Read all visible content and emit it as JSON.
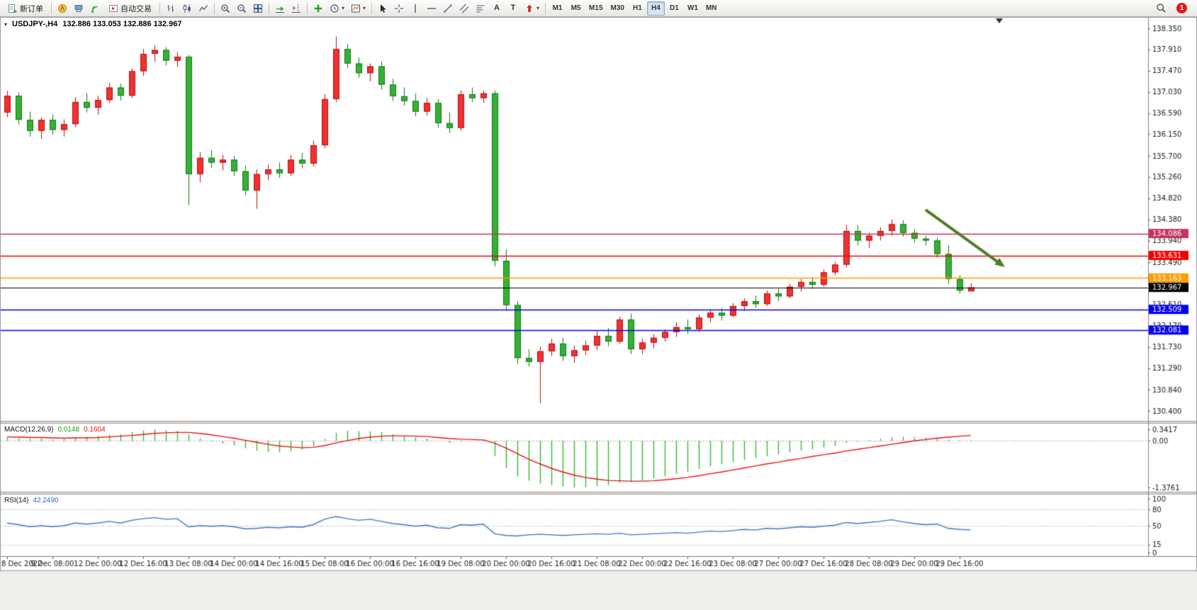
{
  "toolbar": {
    "new_order_label": "新订单",
    "auto_trading_label": "自动交易",
    "timeframes": [
      "M1",
      "M5",
      "M15",
      "M30",
      "H1",
      "H4",
      "D1",
      "W1",
      "MN"
    ],
    "active_timeframe": "H4",
    "notification_count": "1"
  },
  "chart": {
    "symbol_period": "USDJPY-,H4",
    "ohlc_line": "132.886 133.053 132.886 132.967",
    "macd_title": "MACD(12,26,9)",
    "macd_value_main": "0.0148",
    "macd_value_signal": "0.1604",
    "rsi_title": "RSI(14)",
    "rsi_value": "42.2490"
  },
  "chart_data": {
    "type": "candlestick",
    "symbol": "USDJPY-",
    "period": "H4",
    "ohlc_current": {
      "open": 132.886,
      "high": 133.053,
      "low": 132.886,
      "close": 132.967
    },
    "price_axis_labels": [
      "138.350",
      "137.910",
      "137.470",
      "137.030",
      "136.590",
      "136.150",
      "135.700",
      "135.260",
      "134.820",
      "134.380",
      "133.940",
      "133.490",
      "133.050",
      "132.610",
      "132.170",
      "131.730",
      "131.290",
      "130.840",
      "130.400"
    ],
    "time_axis_labels": [
      "8 Dec 2022",
      "9 Dec 08:00",
      "12 Dec 00:00",
      "12 Dec 16:00",
      "13 Dec 08:00",
      "14 Dec 00:00",
      "14 Dec 16:00",
      "15 Dec 08:00",
      "16 Dec 00:00",
      "16 Dec 16:00",
      "19 Dec 08:00",
      "20 Dec 00:00",
      "20 Dec 16:00",
      "21 Dec 08:00",
      "22 Dec 00:00",
      "22 Dec 16:00",
      "23 Dec 08:00",
      "27 Dec 00:00",
      "27 Dec 16:00",
      "28 Dec 08:00",
      "29 Dec 00:00",
      "29 Dec 16:00"
    ],
    "hlines": [
      {
        "price": 134.086,
        "label": "134.086",
        "color": "#c53259",
        "width": 1.4
      },
      {
        "price": 133.631,
        "label": "133.631",
        "color": "#f20000",
        "width": 1.4
      },
      {
        "price": 133.163,
        "label": "133.163",
        "color": "#ff9c00",
        "width": 1.6
      },
      {
        "price": 132.967,
        "label": "132.967",
        "color": "#000000",
        "width": 1.2
      },
      {
        "price": 132.509,
        "label": "132.509",
        "color": "#0000f0",
        "width": 1.6
      },
      {
        "price": 132.081,
        "label": "132.081",
        "color": "#0000f0",
        "width": 1.6
      }
    ],
    "arrow": {
      "from_index": 81,
      "from_price": 134.58,
      "to_index": 88,
      "to_price": 133.39,
      "color": "#4e7e24"
    },
    "colors": {
      "bull_fill": "#f03131",
      "bull_edge": "#b31212",
      "bear_fill": "#35b135",
      "bear_edge": "#157815",
      "macd_histogram": "#33bb33",
      "macd_signal": "#ee1111",
      "rsi_line": "#3f76c8",
      "axis_text": "#1a1a1a"
    },
    "candles_ohlc": [
      [
        136.6,
        137.05,
        136.5,
        136.95
      ],
      [
        136.95,
        137.02,
        136.35,
        136.45
      ],
      [
        136.45,
        136.62,
        136.1,
        136.22
      ],
      [
        136.22,
        136.5,
        136.05,
        136.45
      ],
      [
        136.45,
        136.56,
        136.14,
        136.24
      ],
      [
        136.24,
        136.46,
        136.1,
        136.36
      ],
      [
        136.36,
        136.92,
        136.3,
        136.82
      ],
      [
        136.82,
        137.0,
        136.6,
        136.7
      ],
      [
        136.7,
        136.95,
        136.55,
        136.86
      ],
      [
        136.86,
        137.22,
        136.8,
        137.12
      ],
      [
        137.12,
        137.2,
        136.85,
        136.95
      ],
      [
        136.95,
        137.52,
        136.9,
        137.46
      ],
      [
        137.46,
        137.92,
        137.36,
        137.82
      ],
      [
        137.82,
        138.0,
        137.65,
        137.9
      ],
      [
        137.9,
        137.96,
        137.58,
        137.68
      ],
      [
        137.68,
        137.86,
        137.55,
        137.76
      ],
      [
        137.76,
        137.8,
        134.68,
        135.32
      ],
      [
        135.32,
        135.78,
        135.15,
        135.66
      ],
      [
        135.66,
        135.82,
        135.45,
        135.56
      ],
      [
        135.56,
        135.72,
        135.4,
        135.62
      ],
      [
        135.62,
        135.7,
        135.28,
        135.38
      ],
      [
        135.38,
        135.5,
        134.88,
        134.98
      ],
      [
        134.98,
        135.42,
        134.6,
        135.32
      ],
      [
        135.32,
        135.52,
        135.2,
        135.42
      ],
      [
        135.42,
        135.56,
        135.24,
        135.34
      ],
      [
        135.34,
        135.72,
        135.28,
        135.62
      ],
      [
        135.62,
        135.76,
        135.44,
        135.54
      ],
      [
        135.54,
        136.02,
        135.48,
        135.92
      ],
      [
        135.92,
        136.98,
        135.86,
        136.88
      ],
      [
        136.88,
        138.18,
        136.82,
        137.92
      ],
      [
        137.92,
        138.02,
        137.52,
        137.62
      ],
      [
        137.62,
        137.74,
        137.32,
        137.42
      ],
      [
        137.42,
        137.62,
        137.25,
        137.56
      ],
      [
        137.56,
        137.66,
        137.08,
        137.18
      ],
      [
        137.18,
        137.3,
        136.84,
        136.94
      ],
      [
        136.94,
        137.12,
        136.74,
        136.84
      ],
      [
        136.84,
        137.0,
        136.52,
        136.62
      ],
      [
        136.62,
        136.9,
        136.54,
        136.8
      ],
      [
        136.8,
        136.88,
        136.28,
        136.38
      ],
      [
        136.38,
        136.6,
        136.18,
        136.28
      ],
      [
        136.28,
        137.06,
        136.22,
        136.98
      ],
      [
        136.98,
        137.12,
        136.82,
        136.9
      ],
      [
        136.9,
        137.06,
        136.8,
        137.0
      ],
      [
        137.0,
        137.06,
        133.4,
        133.52
      ],
      [
        133.52,
        133.76,
        132.48,
        132.6
      ],
      [
        132.6,
        132.68,
        131.38,
        131.5
      ],
      [
        131.5,
        131.68,
        131.32,
        131.42
      ],
      [
        131.42,
        131.74,
        130.56,
        131.64
      ],
      [
        131.64,
        131.9,
        131.54,
        131.8
      ],
      [
        131.8,
        131.92,
        131.44,
        131.54
      ],
      [
        131.54,
        131.76,
        131.4,
        131.66
      ],
      [
        131.66,
        131.86,
        131.56,
        131.76
      ],
      [
        131.76,
        132.06,
        131.66,
        131.96
      ],
      [
        131.96,
        132.12,
        131.74,
        131.84
      ],
      [
        131.84,
        132.36,
        131.8,
        132.3
      ],
      [
        132.3,
        132.42,
        131.58,
        131.68
      ],
      [
        131.68,
        131.9,
        131.58,
        131.82
      ],
      [
        131.82,
        132.0,
        131.7,
        131.92
      ],
      [
        131.92,
        132.1,
        131.84,
        132.04
      ],
      [
        132.04,
        132.24,
        131.94,
        132.14
      ],
      [
        132.14,
        132.3,
        132.0,
        132.1
      ],
      [
        132.1,
        132.4,
        132.04,
        132.34
      ],
      [
        132.34,
        132.5,
        132.24,
        132.44
      ],
      [
        132.44,
        132.54,
        132.28,
        132.38
      ],
      [
        132.38,
        132.64,
        132.34,
        132.58
      ],
      [
        132.58,
        132.74,
        132.48,
        132.68
      ],
      [
        132.68,
        132.8,
        132.54,
        132.62
      ],
      [
        132.62,
        132.9,
        132.58,
        132.84
      ],
      [
        132.84,
        132.94,
        132.68,
        132.78
      ],
      [
        132.78,
        133.04,
        132.74,
        132.98
      ],
      [
        132.98,
        133.14,
        132.88,
        133.08
      ],
      [
        133.08,
        133.18,
        132.94,
        133.02
      ],
      [
        133.02,
        133.34,
        132.98,
        133.28
      ],
      [
        133.28,
        133.5,
        133.22,
        133.44
      ],
      [
        133.44,
        134.26,
        133.38,
        134.14
      ],
      [
        134.14,
        134.26,
        133.84,
        133.94
      ],
      [
        133.94,
        134.1,
        133.78,
        134.04
      ],
      [
        134.04,
        134.22,
        133.94,
        134.14
      ],
      [
        134.14,
        134.38,
        134.04,
        134.28
      ],
      [
        134.28,
        134.36,
        134.02,
        134.1
      ],
      [
        134.1,
        134.18,
        133.9,
        133.98
      ],
      [
        133.98,
        134.04,
        133.84,
        133.94
      ],
      [
        133.94,
        134.0,
        133.58,
        133.66
      ],
      [
        133.66,
        133.84,
        133.04,
        133.14
      ],
      [
        133.14,
        133.22,
        132.84,
        132.9
      ],
      [
        132.886,
        133.053,
        132.886,
        132.967
      ]
    ],
    "macd": {
      "params": "12,26,9",
      "current_main": 0.0148,
      "current_signal": 0.1604,
      "range": [
        -1.3761,
        0.3417
      ],
      "scale_labels": [
        "0.3417",
        "0.00",
        "-1.3761"
      ],
      "main": [
        0.1,
        0.08,
        0.06,
        0.07,
        0.05,
        0.06,
        0.1,
        0.12,
        0.14,
        0.18,
        0.2,
        0.26,
        0.31,
        0.34,
        0.32,
        0.3,
        0.2,
        0.08,
        -0.02,
        -0.08,
        -0.14,
        -0.22,
        -0.3,
        -0.33,
        -0.34,
        -0.31,
        -0.26,
        -0.16,
        0.06,
        0.24,
        0.3,
        0.29,
        0.28,
        0.26,
        0.2,
        0.15,
        0.1,
        0.07,
        0.0,
        -0.06,
        -0.02,
        0.0,
        0.02,
        -0.45,
        -0.8,
        -1.05,
        -1.18,
        -1.26,
        -1.31,
        -1.35,
        -1.376,
        -1.37,
        -1.34,
        -1.31,
        -1.24,
        -1.22,
        -1.17,
        -1.11,
        -1.04,
        -0.97,
        -0.91,
        -0.83,
        -0.75,
        -0.69,
        -0.62,
        -0.56,
        -0.51,
        -0.45,
        -0.4,
        -0.34,
        -0.29,
        -0.25,
        -0.2,
        -0.15,
        -0.06,
        -0.02,
        0.02,
        0.06,
        0.11,
        0.12,
        0.11,
        0.1,
        0.09,
        0.04,
        0.02,
        0.0148
      ],
      "signal": [
        0.12,
        0.11,
        0.1,
        0.1,
        0.09,
        0.08,
        0.09,
        0.09,
        0.1,
        0.12,
        0.14,
        0.16,
        0.19,
        0.22,
        0.24,
        0.25,
        0.25,
        0.22,
        0.18,
        0.13,
        0.08,
        0.02,
        -0.04,
        -0.1,
        -0.15,
        -0.18,
        -0.2,
        -0.19,
        -0.14,
        -0.06,
        0.01,
        0.07,
        0.11,
        0.14,
        0.15,
        0.15,
        0.14,
        0.13,
        0.1,
        0.07,
        0.05,
        0.04,
        0.03,
        -0.07,
        -0.21,
        -0.38,
        -0.54,
        -0.68,
        -0.81,
        -0.92,
        -1.01,
        -1.08,
        -1.13,
        -1.17,
        -1.18,
        -1.19,
        -1.19,
        -1.18,
        -1.15,
        -1.12,
        -1.08,
        -1.03,
        -0.97,
        -0.92,
        -0.86,
        -0.8,
        -0.74,
        -0.68,
        -0.63,
        -0.57,
        -0.52,
        -0.46,
        -0.41,
        -0.36,
        -0.3,
        -0.25,
        -0.2,
        -0.15,
        -0.1,
        -0.05,
        0.0,
        0.04,
        0.08,
        0.11,
        0.14,
        0.1604
      ]
    },
    "rsi": {
      "period": 14,
      "current": 42.249,
      "range": [
        0,
        100
      ],
      "levels": [
        80,
        50,
        15
      ],
      "scale_labels": [
        "100",
        "80",
        "50",
        "15",
        "0"
      ],
      "values": [
        55,
        52,
        48,
        50,
        48,
        50,
        55,
        53,
        55,
        58,
        55,
        60,
        63,
        65,
        62,
        63,
        48,
        50,
        49,
        50,
        48,
        44,
        45,
        47,
        46,
        48,
        47,
        52,
        62,
        67,
        63,
        60,
        62,
        58,
        54,
        52,
        49,
        51,
        46,
        45,
        52,
        51,
        53,
        35,
        32,
        31,
        33,
        34,
        33,
        32,
        33,
        34,
        35,
        34,
        36,
        33,
        34,
        35,
        36,
        37,
        36,
        38,
        40,
        39,
        41,
        43,
        42,
        45,
        44,
        46,
        48,
        47,
        49,
        51,
        56,
        54,
        56,
        58,
        61,
        57,
        54,
        52,
        53,
        45,
        43,
        42.249
      ]
    }
  }
}
